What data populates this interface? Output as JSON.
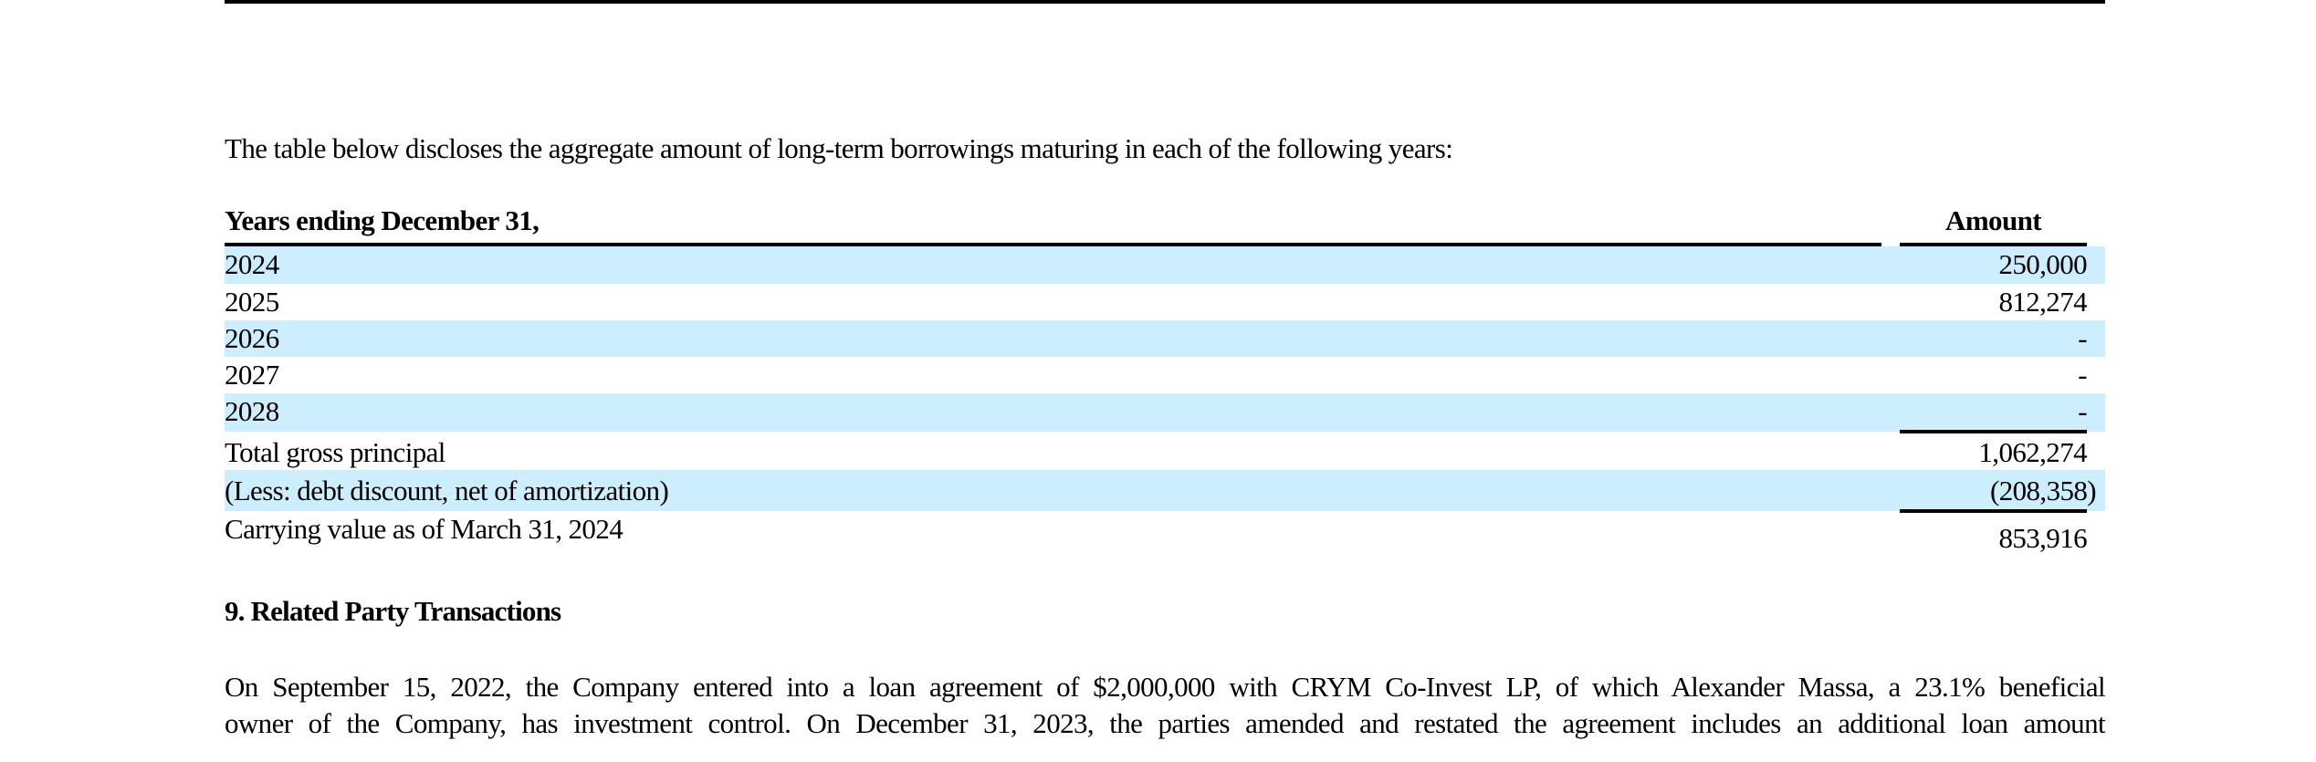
{
  "intro_text": "The table below discloses the aggregate amount of long-term borrowings maturing in each of the following years:",
  "table": {
    "header": {
      "label": "Years ending December 31,",
      "amount": "Amount"
    },
    "rows": [
      {
        "label": "2024",
        "value": "250,000"
      },
      {
        "label": "2025",
        "value": "812,274"
      },
      {
        "label": "2026",
        "value": "-"
      },
      {
        "label": "2027",
        "value": "-"
      },
      {
        "label": "2028",
        "value": "-"
      },
      {
        "label": "Total gross principal",
        "value": "1,062,274"
      },
      {
        "label": "(Less: debt discount, net of amortization)",
        "value": "(208,358)"
      },
      {
        "label": "Carrying value as of March 31, 2024",
        "value": "853,916"
      }
    ]
  },
  "section": {
    "heading": "9. Related Party Transactions",
    "lines": [
      "On September 15, 2022, the Company entered into a loan agreement of $2,000,000 with CRYM Co-Invest LP, of which Alexander Massa, a 23.1% beneficial",
      "owner of the Company, has investment control. On December 31, 2023, the parties amended and restated the agreement includes an additional loan amount"
    ]
  },
  "colors": {
    "row_shade": "#cceeff",
    "text": "#000000"
  }
}
